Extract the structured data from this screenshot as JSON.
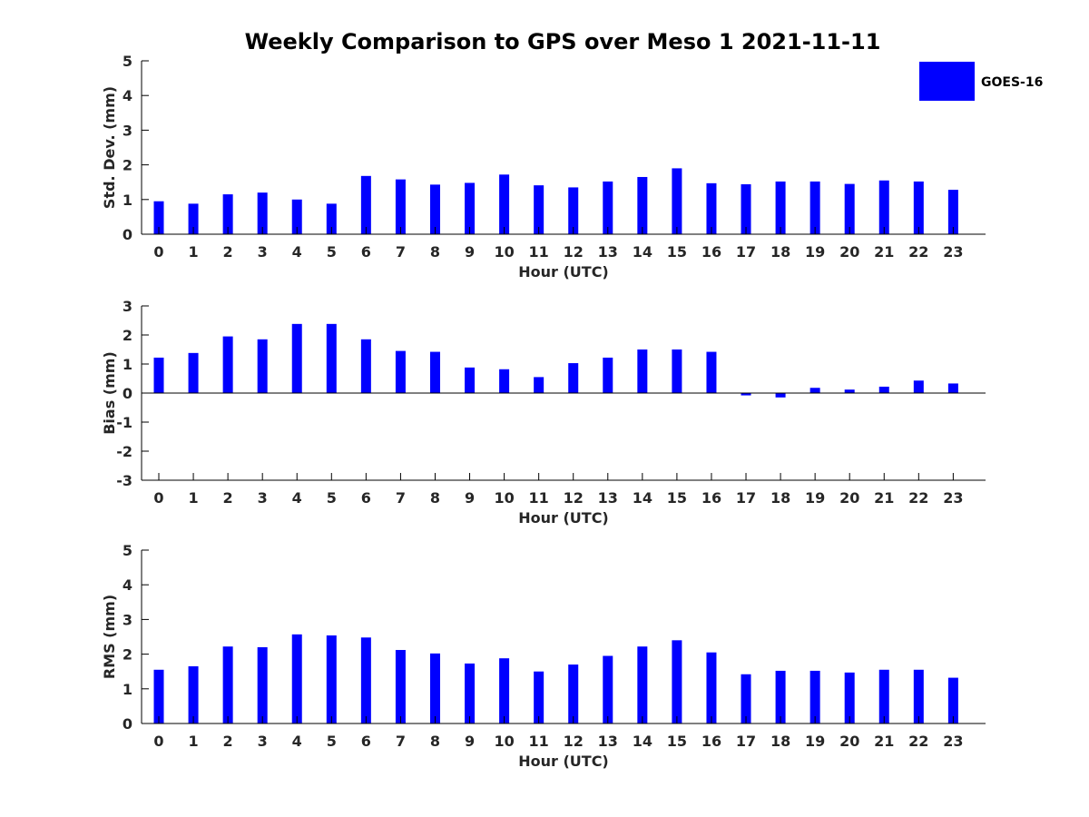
{
  "chart_data": {
    "type": "bar",
    "title": "Weekly Comparison to GPS over Meso 1 2021-11-11",
    "legend": {
      "position": "top-right",
      "entries": [
        {
          "name": "GOES-16",
          "color": "#0000ff"
        }
      ]
    },
    "bar_color": "#0000ff",
    "subplots": [
      {
        "name": "std-dev",
        "ylabel": "Std. Dev. (mm)",
        "xlabel": "Hour (UTC)",
        "ylim": [
          0,
          5
        ],
        "yticks": [
          0,
          1,
          2,
          3,
          4,
          5
        ],
        "categories": [
          "0",
          "1",
          "2",
          "3",
          "4",
          "5",
          "6",
          "7",
          "8",
          "9",
          "10",
          "11",
          "12",
          "13",
          "14",
          "15",
          "16",
          "17",
          "18",
          "19",
          "20",
          "21",
          "22",
          "23"
        ],
        "series": [
          {
            "name": "GOES-16",
            "values": [
              0.95,
              0.88,
              1.15,
              1.2,
              1.0,
              0.88,
              1.68,
              1.58,
              1.43,
              1.48,
              1.72,
              1.41,
              1.35,
              1.52,
              1.65,
              1.9,
              1.47,
              1.44,
              1.52,
              1.52,
              1.45,
              1.55,
              1.52,
              1.28
            ]
          }
        ]
      },
      {
        "name": "bias",
        "ylabel": "Bias (mm)",
        "xlabel": "Hour (UTC)",
        "ylim": [
          -3,
          3
        ],
        "yticks": [
          -3,
          -2,
          -1,
          0,
          1,
          2,
          3
        ],
        "categories": [
          "0",
          "1",
          "2",
          "3",
          "4",
          "5",
          "6",
          "7",
          "8",
          "9",
          "10",
          "11",
          "12",
          "13",
          "14",
          "15",
          "16",
          "17",
          "18",
          "19",
          "20",
          "21",
          "22",
          "23"
        ],
        "series": [
          {
            "name": "GOES-16",
            "values": [
              1.22,
              1.38,
              1.95,
              1.85,
              2.38,
              2.38,
              1.85,
              1.45,
              1.42,
              0.88,
              0.82,
              0.55,
              1.03,
              1.22,
              1.5,
              1.5,
              1.42,
              -0.08,
              -0.15,
              0.18,
              0.12,
              0.22,
              0.43,
              0.33
            ]
          }
        ]
      },
      {
        "name": "rms",
        "ylabel": "RMS (mm)",
        "xlabel": "Hour (UTC)",
        "ylim": [
          0,
          5
        ],
        "yticks": [
          0,
          1,
          2,
          3,
          4,
          5
        ],
        "categories": [
          "0",
          "1",
          "2",
          "3",
          "4",
          "5",
          "6",
          "7",
          "8",
          "9",
          "10",
          "11",
          "12",
          "13",
          "14",
          "15",
          "16",
          "17",
          "18",
          "19",
          "20",
          "21",
          "22",
          "23"
        ],
        "series": [
          {
            "name": "GOES-16",
            "values": [
              1.55,
              1.65,
              2.22,
              2.2,
              2.57,
              2.54,
              2.48,
              2.12,
              2.02,
              1.73,
              1.88,
              1.5,
              1.7,
              1.95,
              2.22,
              2.4,
              2.05,
              1.42,
              1.52,
              1.52,
              1.47,
              1.55,
              1.55,
              1.32
            ]
          }
        ]
      }
    ]
  }
}
